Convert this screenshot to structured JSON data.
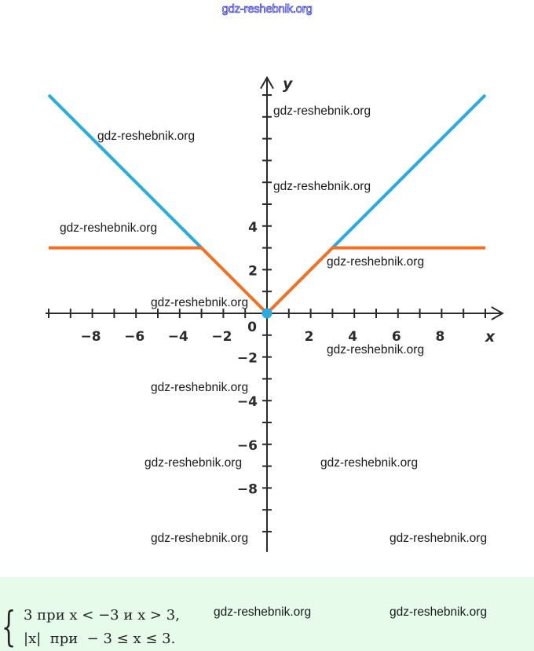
{
  "header": {
    "site": "gdz-reshebnik.org"
  },
  "chart_data": {
    "type": "line",
    "xlabel": "x",
    "ylabel": "y",
    "origin_label": "0",
    "xlim": [
      -10,
      10.5
    ],
    "ylim": [
      -10.5,
      10.8
    ],
    "x_tick_labels": [
      {
        "value": -8,
        "label": "−8"
      },
      {
        "value": -6,
        "label": "−6"
      },
      {
        "value": -4,
        "label": "−4"
      },
      {
        "value": -2,
        "label": "−2"
      },
      {
        "value": 2,
        "label": "2"
      },
      {
        "value": 4,
        "label": "4"
      },
      {
        "value": 6,
        "label": "6"
      },
      {
        "value": 8,
        "label": "8"
      }
    ],
    "y_tick_labels": [
      {
        "value": 4,
        "label": "4"
      },
      {
        "value": 2,
        "label": "2"
      },
      {
        "value": -2,
        "label": "−2"
      },
      {
        "value": -4,
        "label": "−4"
      },
      {
        "value": -6,
        "label": "−6"
      },
      {
        "value": -8,
        "label": "−8"
      }
    ],
    "series": [
      {
        "color": "#29abe2",
        "x": [
          -10,
          -3
        ],
        "y": [
          10,
          3
        ]
      },
      {
        "color": "#29abe2",
        "x": [
          3,
          10
        ],
        "y": [
          3,
          10
        ]
      },
      {
        "color": "#f37021",
        "x": [
          -10,
          -3,
          0,
          3,
          10
        ],
        "y": [
          3,
          3,
          0,
          3,
          3
        ]
      }
    ],
    "point": {
      "x": 0,
      "y": 0,
      "color": "#29abe2"
    }
  },
  "watermarks": [
    {
      "text": "gdz-reshebnik.org"
    },
    {
      "text": "gdz-reshebnik.org"
    },
    {
      "text": "gdz-reshebnik.org"
    },
    {
      "text": "gdz-reshebnik.org"
    },
    {
      "text": "gdz-reshebnik.org"
    },
    {
      "text": "gdz-reshebnik.org"
    },
    {
      "text": "gdz-reshebnik.org"
    },
    {
      "text": "gdz-reshebnik.org"
    },
    {
      "text": "gdz-reshebnik.org"
    },
    {
      "text": "gdz-reshebnik.org"
    },
    {
      "text": "gdz-reshebnik.org"
    },
    {
      "text": "gdz-reshebnik.org"
    }
  ],
  "answer": {
    "case1": "3 при x < −3 и x > 3,",
    "case2": "|x|  при  − 3 ≤ x ≤ 3.",
    "watermark_left": "gdz-reshebnik.org",
    "watermark_right": "gdz-reshebnik.org"
  }
}
